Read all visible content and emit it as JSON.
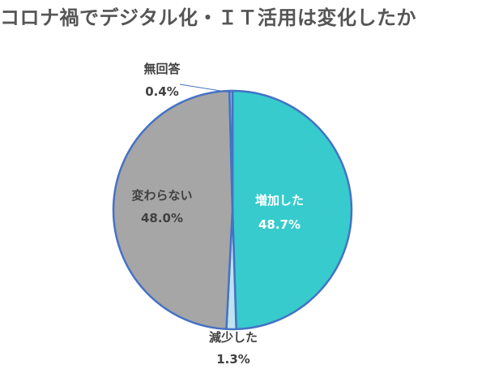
{
  "chart_data": {
    "type": "pie",
    "title": "コロナ禍でデジタル化・ＩＴ活用は変化したか",
    "slices": [
      {
        "name": "増加した",
        "value": 48.7,
        "value_label": "48.7%",
        "color": "#37CBCD"
      },
      {
        "name": "減少した",
        "value": 1.3,
        "value_label": "1.3%",
        "color": "#BFE3EE"
      },
      {
        "name": "変わらない",
        "value": 48.0,
        "value_label": "48.0%",
        "color": "#A6A6A6"
      },
      {
        "name": "無回答",
        "value": 0.4,
        "value_label": "0.4%",
        "color": "#9DC3E6"
      }
    ],
    "start": "12 o'clock",
    "direction": "clockwise",
    "slice_border_color": "#4472C4",
    "legend": "none",
    "label_colors": {
      "inside_teal": "#FFFFFF",
      "inside_gray": "#404040",
      "outside": "#404040"
    }
  }
}
